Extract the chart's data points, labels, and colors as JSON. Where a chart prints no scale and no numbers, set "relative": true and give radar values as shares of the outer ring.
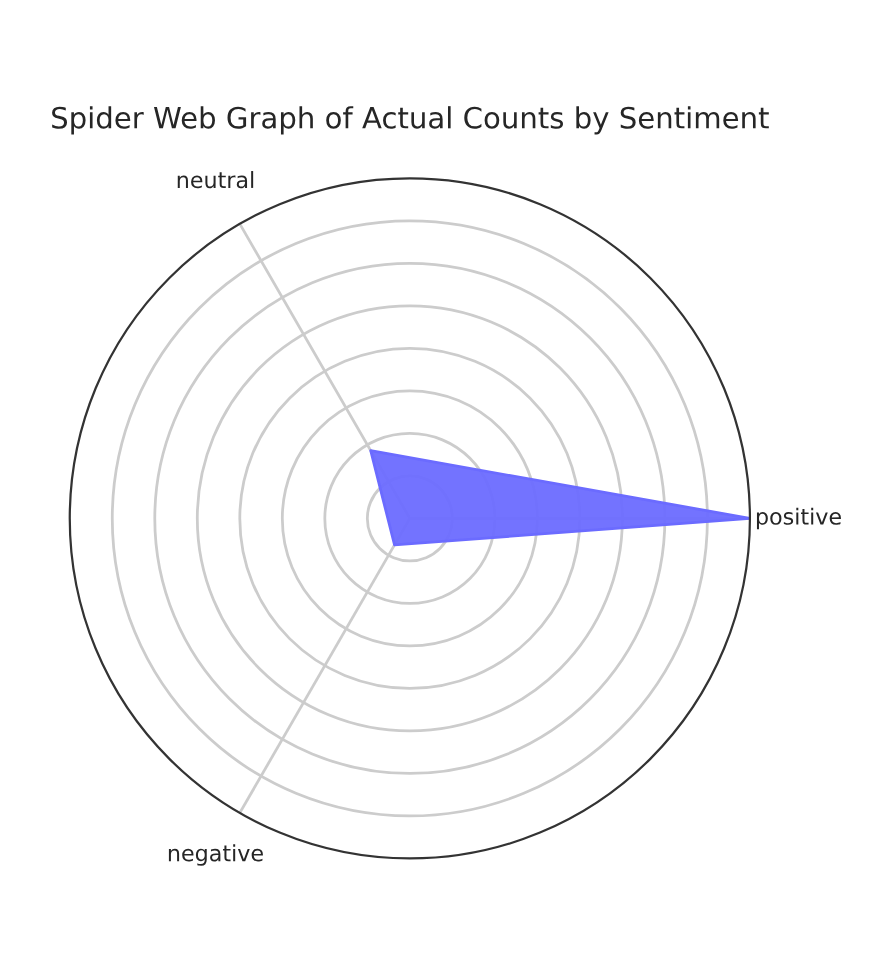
{
  "chart_data": {
    "type": "radar",
    "title": "Spider Web Graph of Actual Counts by Sentiment",
    "relative": true,
    "categories": [
      "positive",
      "negative",
      "neutral"
    ],
    "series": [
      {
        "color": "#6b6bff",
        "values": [
          1,
          0.09,
          0.23
        ]
      }
    ],
    "grid": true
  }
}
